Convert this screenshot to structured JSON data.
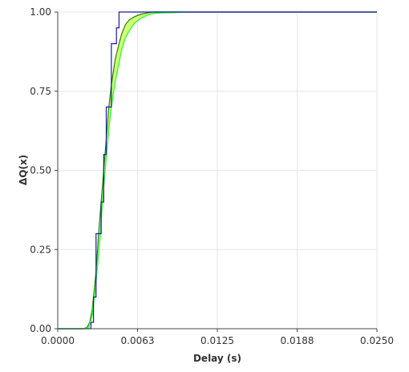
{
  "chart_data": {
    "type": "line",
    "title": "",
    "xlabel": "Delay (s)",
    "ylabel": "ΔQ(x)",
    "xlim": [
      0,
      0.025
    ],
    "ylim": [
      0,
      1
    ],
    "grid": true,
    "legend": "none",
    "x_ticks": [
      "0.0000",
      "0.0063",
      "0.0125",
      "0.0188",
      "0.0250"
    ],
    "x_tick_values": [
      0,
      0.00625,
      0.0125,
      0.01875,
      0.025
    ],
    "y_ticks": [
      "0.00",
      "0.25",
      "0.50",
      "0.75",
      "1.00"
    ],
    "y_tick_values": [
      0,
      0.25,
      0.5,
      0.75,
      1
    ],
    "colors": {
      "band_fill": "#ccff66",
      "upper_line": "#2e7d0e",
      "lower_line": "#33ff33",
      "step_line": "#1a1aa6",
      "final_line": "#22aa22",
      "grid": "#e6e6e6",
      "axis": "#444444"
    },
    "series": [
      {
        "role": "step",
        "x": [
          0,
          0.0026,
          0.0026,
          0.0028,
          0.0028,
          0.003,
          0.003,
          0.0034,
          0.0034,
          0.0036,
          0.0036,
          0.0038,
          0.0038,
          0.0042,
          0.0042,
          0.0046,
          0.0046,
          0.0048,
          0.0048,
          0.025
        ],
        "y": [
          0,
          0,
          0.02,
          0.02,
          0.1,
          0.1,
          0.3,
          0.3,
          0.4,
          0.4,
          0.55,
          0.55,
          0.7,
          0.7,
          0.9,
          0.9,
          0.95,
          0.95,
          1.0,
          1.0
        ]
      },
      {
        "role": "upper",
        "x": [
          0,
          0.002,
          0.0023,
          0.0025,
          0.0027,
          0.003,
          0.0032,
          0.0035,
          0.0038,
          0.004,
          0.0042,
          0.0045,
          0.0048,
          0.005,
          0.0053,
          0.0056,
          0.006,
          0.0065,
          0.007,
          0.0075,
          0.008,
          0.025
        ],
        "y": [
          0,
          0,
          0.005,
          0.02,
          0.06,
          0.18,
          0.3,
          0.45,
          0.6,
          0.7,
          0.77,
          0.85,
          0.9,
          0.93,
          0.96,
          0.975,
          0.985,
          0.993,
          0.997,
          1.0,
          1.0,
          1.0
        ]
      },
      {
        "role": "lower",
        "x": [
          0,
          0.002,
          0.0024,
          0.0027,
          0.003,
          0.0033,
          0.0035,
          0.0038,
          0.004,
          0.0042,
          0.0045,
          0.0048,
          0.005,
          0.0053,
          0.0056,
          0.006,
          0.0065,
          0.007,
          0.0075,
          0.008,
          0.009,
          0.01
        ],
        "y": [
          0,
          0,
          0.003,
          0.04,
          0.15,
          0.28,
          0.4,
          0.54,
          0.63,
          0.7,
          0.78,
          0.84,
          0.88,
          0.92,
          0.94,
          0.965,
          0.98,
          0.99,
          0.995,
          0.997,
          0.998,
          1.0
        ]
      },
      {
        "role": "final",
        "x": [
          0.0075,
          0.025
        ],
        "y": [
          1.0,
          1.0
        ]
      }
    ]
  }
}
